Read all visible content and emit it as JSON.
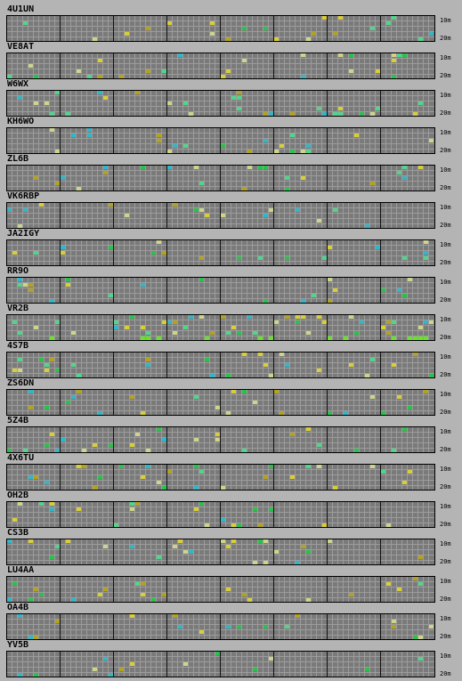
{
  "bands": {
    "top": "10m",
    "bottom": "20m"
  },
  "colors": {
    "background": "#b4b4b4",
    "grid": "#7a7a7a",
    "levels": [
      "#b3a21c",
      "#d8cf35",
      "#28c24a",
      "#4ed68a",
      "#2fb6c8",
      "#cfd48a",
      "#f4f46a",
      "#62e61e"
    ]
  },
  "stations": [
    {
      "name": "4U1UN"
    },
    {
      "name": "VE8AT"
    },
    {
      "name": "W6WX"
    },
    {
      "name": "KH6WO"
    },
    {
      "name": "ZL6B"
    },
    {
      "name": "VK6RBP"
    },
    {
      "name": "JA2IGY"
    },
    {
      "name": "RR9O"
    },
    {
      "name": "VR2B"
    },
    {
      "name": "4S7B"
    },
    {
      "name": "ZS6DN"
    },
    {
      "name": "5Z4B"
    },
    {
      "name": "4X6TU"
    },
    {
      "name": "OH2B"
    },
    {
      "name": "CS3B"
    },
    {
      "name": "LU4AA"
    },
    {
      "name": "OA4B"
    },
    {
      "name": "YV5B"
    }
  ]
}
